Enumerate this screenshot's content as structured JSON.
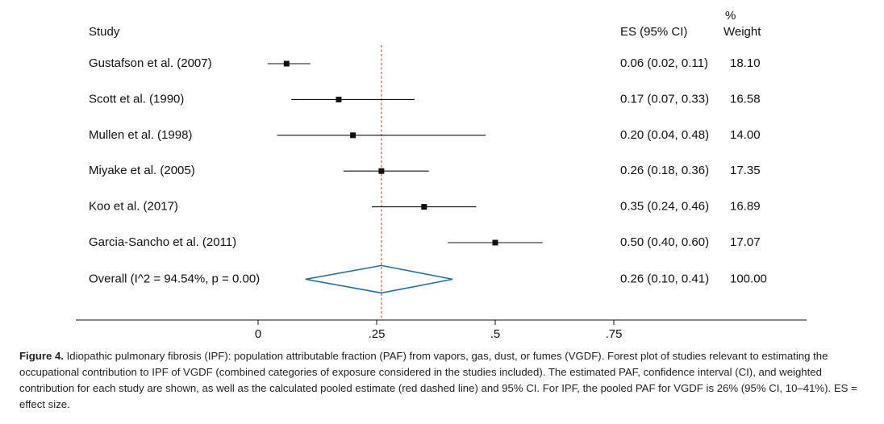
{
  "headers": {
    "study": "Study",
    "es": "ES (95% CI)",
    "weight_line1": "%",
    "weight_line2": "Weight"
  },
  "colors": {
    "reference_line": "#c0653a",
    "diamond": "#1f6fb2",
    "marker": "#111111"
  },
  "chart_data": {
    "type": "forest",
    "xlim": [
      0,
      0.75
    ],
    "xticks": [
      0,
      0.25,
      0.5,
      0.75
    ],
    "xtick_labels": [
      "0",
      ".25",
      ".5",
      ".75"
    ],
    "reference_line": 0.26,
    "studies": [
      {
        "label": "Gustafson et al. (2007)",
        "es": 0.06,
        "lower": 0.02,
        "upper": 0.11,
        "es_text": "0.06 (0.02, 0.11)",
        "weight": "18.10"
      },
      {
        "label": "Scott et al. (1990)",
        "es": 0.17,
        "lower": 0.07,
        "upper": 0.33,
        "es_text": "0.17 (0.07, 0.33)",
        "weight": "16.58"
      },
      {
        "label": "Mullen et al. (1998)",
        "es": 0.2,
        "lower": 0.04,
        "upper": 0.48,
        "es_text": "0.20 (0.04, 0.48)",
        "weight": "14.00"
      },
      {
        "label": "Miyake et al. (2005)",
        "es": 0.26,
        "lower": 0.18,
        "upper": 0.36,
        "es_text": "0.26 (0.18, 0.36)",
        "weight": "17.35"
      },
      {
        "label": "Koo et al. (2017)",
        "es": 0.35,
        "lower": 0.24,
        "upper": 0.46,
        "es_text": "0.35 (0.24, 0.46)",
        "weight": "16.89"
      },
      {
        "label": "Garcia-Sancho et al. (2011)",
        "es": 0.5,
        "lower": 0.4,
        "upper": 0.6,
        "es_text": "0.50 (0.40, 0.60)",
        "weight": "17.07"
      }
    ],
    "overall": {
      "label": "Overall (I^2 = 94.54%, p = 0.00)",
      "es": 0.26,
      "lower": 0.1,
      "upper": 0.41,
      "es_text": "0.26 (0.10, 0.41)",
      "weight": "100.00"
    }
  },
  "caption": {
    "label": "Figure 4.",
    "text": "Idiopathic pulmonary fibrosis (IPF): population attributable fraction (PAF) from vapors, gas, dust, or fumes (VGDF). Forest plot of studies relevant to estimating the occupational contribution to IPF of VGDF (combined categories of exposure considered in the studies included). The estimated PAF, confidence interval (CI), and weighted contribution for each study are shown, as well as the calculated pooled estimate (red dashed line) and 95% CI. For IPF, the pooled PAF for VGDF is 26% (95% CI, 10–41%). ES = effect size."
  }
}
